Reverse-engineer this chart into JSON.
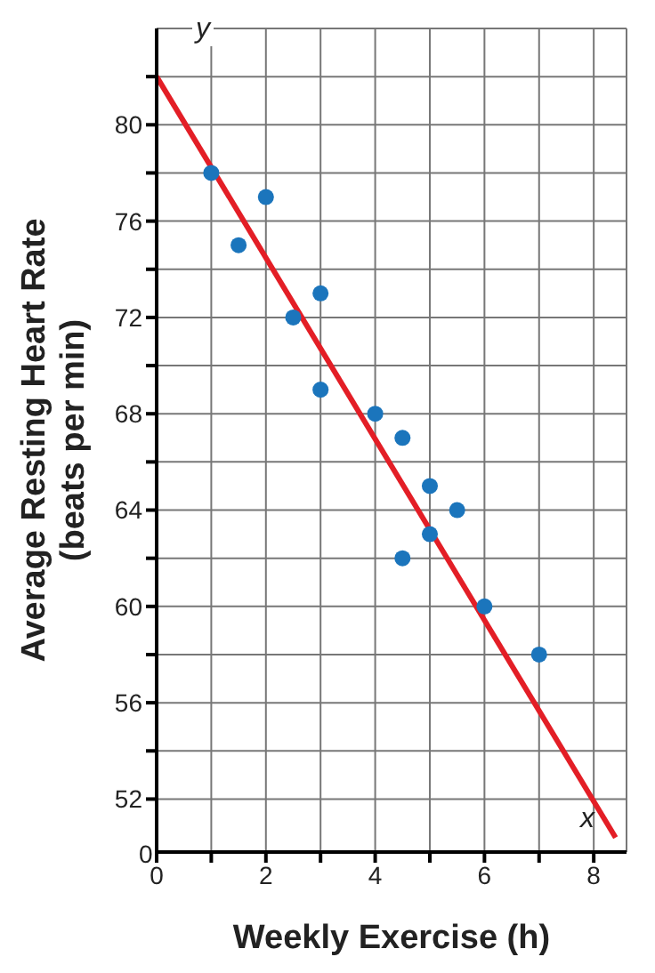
{
  "chart_data": {
    "type": "scatter",
    "xlabel": "Weekly Exercise (h)",
    "ylabel": "Average Resting Heart Rate\n(beats per min)",
    "x": [
      1,
      1.5,
      2,
      2.5,
      3,
      3,
      4,
      4.5,
      5,
      5.5,
      5,
      4.5,
      6,
      7
    ],
    "series": [
      {
        "color": "#1b75bc",
        "marker": "circle",
        "values": [
          78,
          75,
          77,
          72,
          73,
          69,
          68,
          67,
          65,
          64,
          63,
          62,
          60,
          58
        ]
      },
      {
        "type": "line",
        "color": "#e31e26",
        "x": [
          0,
          8.4
        ],
        "values": [
          82,
          50.4
        ]
      }
    ],
    "grid": true,
    "xlim": [
      0,
      8.6
    ],
    "xticks": [
      0,
      {
        "value": 1,
        "label": null
      },
      2,
      {
        "value": 3,
        "label": null
      },
      4,
      {
        "value": 5,
        "label": null
      },
      6,
      {
        "value": 7,
        "label": null
      },
      8
    ],
    "ylim": [
      49.8,
      84
    ],
    "yticks": [
      52,
      {
        "value": 54,
        "label": null
      },
      56,
      {
        "value": 58,
        "label": null
      },
      60,
      {
        "value": 62,
        "label": null
      },
      64,
      {
        "value": 66,
        "label": null
      },
      68,
      {
        "value": 70,
        "label": null
      },
      72,
      {
        "value": 74,
        "label": null
      },
      76,
      {
        "value": 78,
        "label": null
      },
      80,
      {
        "value": 82,
        "label": null
      }
    ],
    "annotations": [
      "x",
      "y",
      "0"
    ]
  }
}
